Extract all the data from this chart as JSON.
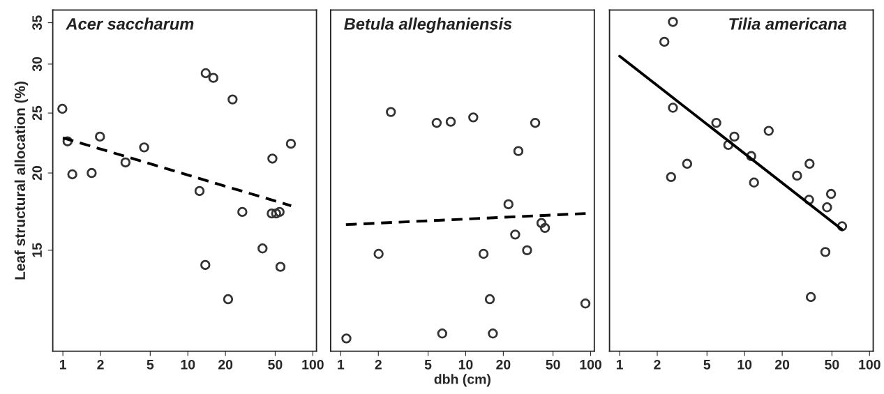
{
  "chart_data": [
    {
      "type": "scatter",
      "title": "Acer saccharum",
      "ylabel": "Leaf structural allocation (%)",
      "log": "xy",
      "xlim": [
        0.83,
        107
      ],
      "ylim": [
        10.3,
        36.7
      ],
      "xticks": [
        1,
        2,
        5,
        10,
        20,
        50,
        100
      ],
      "yticks": [
        15,
        20,
        25,
        30,
        35
      ],
      "grid": false,
      "legend": false,
      "series": [
        {
          "marker": "circle",
          "color": "#333333",
          "x": [
            0.99,
            1.09,
            1.19,
            1.7,
            1.98,
            3.17,
            4.47,
            12.4,
            13.9,
            16.0,
            22.8,
            27.3,
            47.5,
            66.8,
            46.9,
            50.9,
            54.2,
            39.6,
            13.8,
            55.1,
            21.0
          ],
          "values": [
            25.4,
            22.5,
            19.9,
            20.0,
            22.9,
            20.8,
            22.0,
            18.7,
            29.0,
            28.5,
            26.3,
            17.3,
            21.1,
            22.3,
            17.2,
            17.2,
            17.3,
            15.1,
            14.2,
            14.1,
            12.5
          ]
        },
        {
          "type": "line",
          "color": "#000000",
          "line_style": "dashed",
          "x": [
            1.0,
            67.1
          ],
          "values": [
            22.8,
            17.7
          ]
        }
      ]
    },
    {
      "type": "scatter",
      "title": "Betula alleghaniensis",
      "xlabel": "dbh (cm)",
      "log": "xy",
      "xlim": [
        0.83,
        107
      ],
      "ylim": [
        10.3,
        36.7
      ],
      "xticks": [
        1,
        2,
        5,
        10,
        20,
        50,
        100
      ],
      "tick_labels": "x",
      "grid": false,
      "legend": false,
      "series": [
        {
          "marker": "circle",
          "color": "#333333",
          "x": [
            1.11,
            2.01,
            2.52,
            5.86,
            7.59,
            11.5,
            36.0,
            26.4,
            22.0,
            40.4,
            43.1,
            24.9,
            31.0,
            13.9,
            15.6,
            90.8,
            6.49,
            16.5
          ],
          "values": [
            10.8,
            14.8,
            25.1,
            24.1,
            24.2,
            24.6,
            24.1,
            21.7,
            17.8,
            16.6,
            16.3,
            15.9,
            15.0,
            14.8,
            12.5,
            12.3,
            11.0,
            11.0
          ]
        },
        {
          "type": "line",
          "color": "#000000",
          "line_style": "dashed",
          "x": [
            1.1,
            91.2
          ],
          "values": [
            16.5,
            17.2
          ]
        }
      ]
    },
    {
      "type": "scatter",
      "title": "Tilia americana",
      "log": "xy",
      "xlim": [
        0.83,
        107
      ],
      "ylim": [
        10.3,
        36.7
      ],
      "xticks": [
        1,
        2,
        5,
        10,
        20,
        50,
        100
      ],
      "tick_labels": "x",
      "grid": false,
      "legend": false,
      "series": [
        {
          "marker": "circle",
          "color": "#333333",
          "x": [
            2.67,
            2.28,
            2.67,
            5.94,
            8.28,
            7.41,
            15.6,
            11.3,
            3.47,
            33.1,
            2.58,
            11.9,
            26.3,
            49.2,
            32.8,
            45.7,
            60.3,
            44.3,
            33.9
          ],
          "values": [
            35.1,
            32.6,
            25.5,
            24.1,
            22.9,
            22.2,
            23.4,
            21.3,
            20.7,
            20.7,
            19.7,
            19.3,
            19.8,
            18.5,
            18.1,
            17.6,
            16.4,
            14.9,
            12.6
          ]
        },
        {
          "type": "line",
          "color": "#000000",
          "line_style": "solid",
          "x": [
            1.0,
            60.3
          ],
          "values": [
            30.9,
            16.2
          ]
        }
      ]
    }
  ]
}
